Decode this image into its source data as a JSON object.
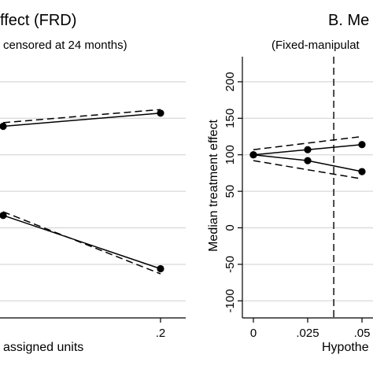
{
  "chart_data": [
    {
      "panel": "left",
      "type": "line",
      "title": "ffect (FRD)",
      "subtitle": "censored at 24 months",
      "xlabel": "assigned units",
      "ylabel": "",
      "x_ticks": [
        {
          "value": 0.2,
          "label": ".2"
        }
      ],
      "xlim": [
        0.0,
        0.2
      ],
      "series": [
        {
          "style": "solid",
          "marker": "circle",
          "x": [
            0.0,
            0.2
          ],
          "y": [
            139,
            157
          ]
        },
        {
          "style": "dashed",
          "x": [
            0.0,
            0.2
          ],
          "y": [
            144,
            162
          ]
        },
        {
          "style": "solid",
          "marker": "circle",
          "x": [
            0.0,
            0.2
          ],
          "y": [
            17,
            -56
          ]
        },
        {
          "style": "dashed",
          "x": [
            0.0,
            0.2
          ],
          "y": [
            22,
            -63
          ]
        }
      ],
      "grid": "horizontal"
    },
    {
      "panel": "right",
      "type": "line",
      "title": "B. Me",
      "subtitle": "(Fixed-manipulat",
      "xlabel": "Hypothe",
      "ylabel": "Median treatment effect",
      "ylim": [
        -100,
        200
      ],
      "y_ticks": [
        -100,
        -50,
        0,
        50,
        100,
        150,
        200
      ],
      "x_ticks": [
        {
          "value": 0.0,
          "label": "0"
        },
        {
          "value": 0.025,
          "label": ".025"
        },
        {
          "value": 0.05,
          "label": ".05"
        }
      ],
      "xlim": [
        0.0,
        0.05
      ],
      "vline": {
        "x": 0.037,
        "style": "dashed"
      },
      "series": [
        {
          "style": "solid",
          "marker": "circle",
          "x": [
            0.0,
            0.025,
            0.05
          ],
          "y": [
            100,
            107,
            114
          ]
        },
        {
          "style": "dashed",
          "x": [
            0.0,
            0.05
          ],
          "y": [
            107,
            125
          ]
        },
        {
          "style": "solid",
          "marker": "circle",
          "x": [
            0.0,
            0.025,
            0.05
          ],
          "y": [
            100,
            92,
            77
          ]
        },
        {
          "style": "dashed",
          "x": [
            0.0,
            0.05
          ],
          "y": [
            92,
            67
          ]
        }
      ],
      "grid": "horizontal"
    }
  ]
}
